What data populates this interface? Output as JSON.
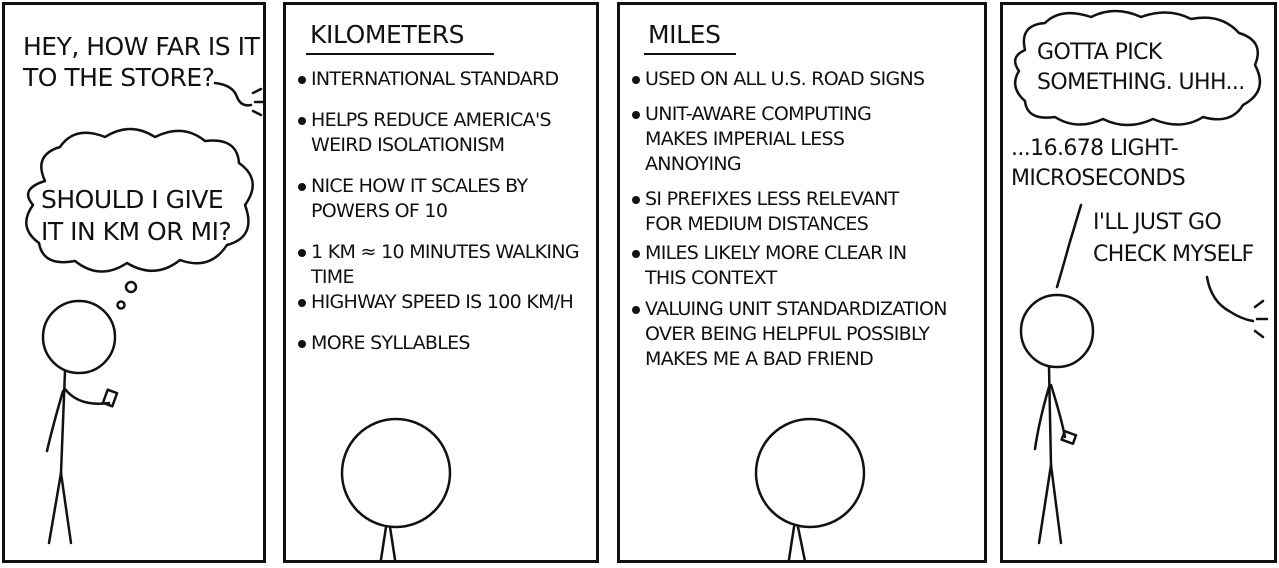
{
  "panel1": {
    "question": [
      "HEY, HOW FAR IS IT",
      "TO THE STORE?"
    ],
    "thought": [
      "SHOULD I GIVE",
      "IT IN KM OR MI?"
    ]
  },
  "panel2": {
    "heading": "KILOMETERS",
    "bullets": [
      [
        "INTERNATIONAL STANDARD"
      ],
      [
        "HELPS REDUCE AMERICA'S",
        "WEIRD ISOLATIONISM"
      ],
      [
        "NICE HOW IT SCALES BY",
        "POWERS OF 10"
      ],
      [
        "1 KM ≈ 10 MINUTES WALKING",
        "TIME"
      ],
      [
        "HIGHWAY SPEED IS 100 KM/H"
      ],
      [
        "MORE SYLLABLES"
      ]
    ]
  },
  "panel3": {
    "heading": "MILES",
    "bullets": [
      [
        "USED ON ALL U.S. ROAD SIGNS"
      ],
      [
        "UNIT-AWARE COMPUTING",
        "MAKES IMPERIAL LESS",
        "ANNOYING"
      ],
      [
        "SI PREFIXES LESS RELEVANT",
        "FOR MEDIUM DISTANCES"
      ],
      [
        "MILES LIKELY MORE CLEAR IN",
        "THIS CONTEXT"
      ],
      [
        "VALUING UNIT STANDARDIZATION",
        "OVER BEING HELPFUL POSSIBLY",
        "MAKES ME A BAD FRIEND"
      ]
    ]
  },
  "panel4": {
    "thought": [
      "GOTTA PICK",
      "SOMETHING. UHH..."
    ],
    "answer": [
      "...16.678 LIGHT-",
      "MICROSECONDS"
    ],
    "reply": [
      "I'LL JUST GO",
      "CHECK MYSELF"
    ]
  }
}
